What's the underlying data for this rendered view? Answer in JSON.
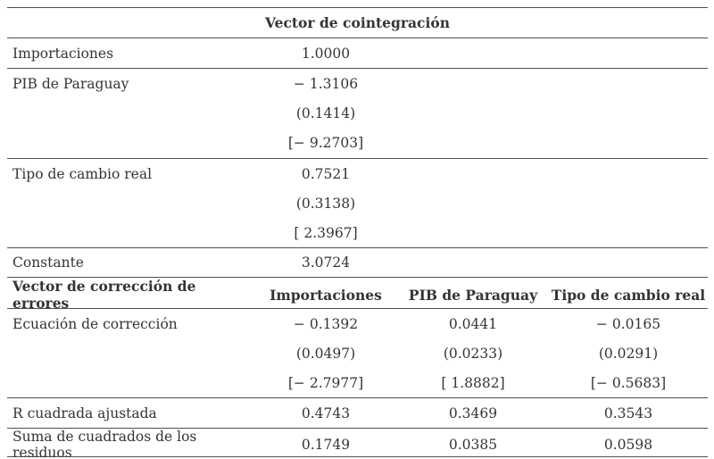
{
  "section1": {
    "title": "Vector de cointegración",
    "rows": [
      {
        "label": "Importaciones",
        "value": "1.0000"
      },
      {
        "label": "PIB de Paraguay",
        "coef": "− 1.3106",
        "se": "(0.1414)",
        "t": "[− 9.2703]"
      },
      {
        "label": "Tipo de cambio real",
        "coef": "0.7521",
        "se": "(0.3138)",
        "t": "[ 2.3967]"
      },
      {
        "label": "Constante",
        "value": "3.0724"
      }
    ]
  },
  "section2": {
    "header": {
      "label": "Vector de corrección de errores",
      "col1": "Importaciones",
      "col2": "PIB de Paraguay",
      "col3": "Tipo de cambio real"
    },
    "correction": {
      "label": "Ecuación de corrección",
      "coef": [
        "− 0.1392",
        "0.0441",
        "− 0.0165"
      ],
      "se": [
        "(0.0497)",
        "(0.0233)",
        "(0.0291)"
      ],
      "t": [
        "[− 2.7977]",
        "[ 1.8882]",
        "[− 0.5683]"
      ]
    },
    "r2adj": {
      "label": "R cuadrada ajustada",
      "values": [
        "0.4743",
        "0.3469",
        "0.3543"
      ]
    },
    "ssr": {
      "label": "Suma de cuadrados de los residuos",
      "values": [
        "0.1749",
        "0.0385",
        "0.0598"
      ]
    }
  },
  "colors": {
    "text": "#343434",
    "rule": "#4f4f4f",
    "background": "#ffffff"
  }
}
